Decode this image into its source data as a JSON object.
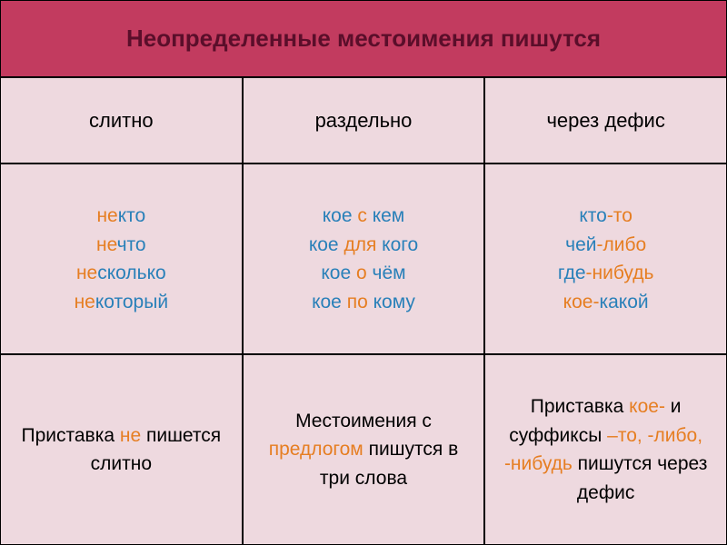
{
  "header": {
    "text": "Неопределенные местоимения пишутся",
    "bg_color": "#c23b5f",
    "text_color": "#5a0e2a"
  },
  "columns": [
    "слитно",
    "раздельно",
    "через дефис"
  ],
  "row_bg": "#eed9df",
  "examples": {
    "slitno": [
      {
        "pre": "не",
        "word": "кто"
      },
      {
        "pre": "не",
        "word": "что"
      },
      {
        "pre": "не",
        "word": "сколько"
      },
      {
        "pre": "не",
        "word": "который"
      }
    ],
    "razdelno": [
      {
        "a": "кое",
        "mid": " с ",
        "b": "кем"
      },
      {
        "a": "кое",
        "mid": " для ",
        "b": "кого"
      },
      {
        "a": "кое",
        "mid": " о ",
        "b": "чём"
      },
      {
        "a": "кое",
        "mid": " по ",
        "b": "кому"
      }
    ],
    "defis": [
      {
        "a": "кто",
        "b": "-то"
      },
      {
        "a": "чей",
        "b": "-либо"
      },
      {
        "a": "где",
        "b": "-нибудь"
      },
      {
        "a": "кое-",
        "b": "какой"
      }
    ]
  },
  "rules": {
    "slitno": {
      "pre": "Приставка ",
      "hl": "не",
      "post": " пишется слитно"
    },
    "razdelno": "Местоимения с предлогом пишутся в три слова",
    "razdelno_hl": "предлогом",
    "defis": {
      "pre": "Приставка ",
      "hl1": "кое-",
      "mid": " и суффиксы ",
      "hl2": "–то, -либо, -нибудь",
      "post": " пишутся через дефис"
    }
  }
}
